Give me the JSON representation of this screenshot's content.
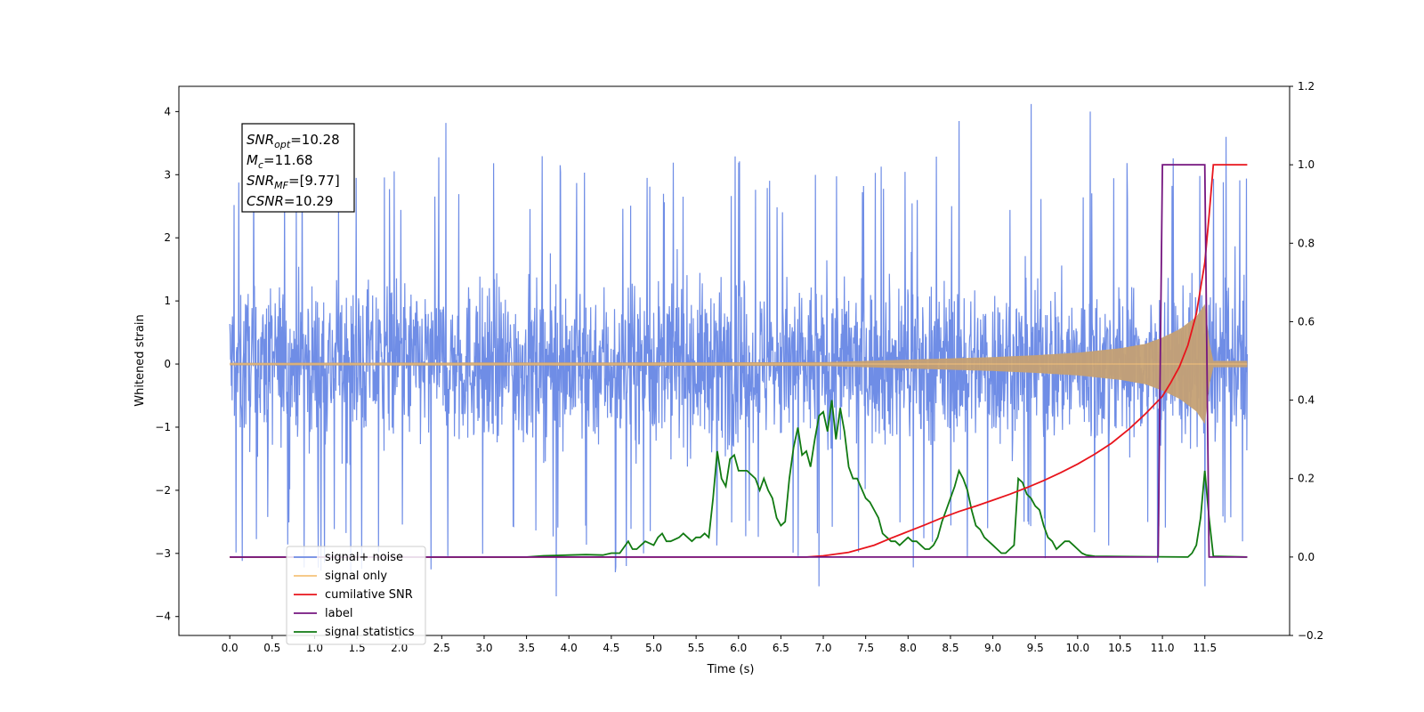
{
  "chart_data": {
    "type": "line",
    "xlabel": "Time (s)",
    "ylabel_left": "Whitened strain",
    "ylabel_right": "",
    "xlim": [
      -0.6,
      12.5
    ],
    "ylim_left": [
      -4.3,
      4.4
    ],
    "ylim_right": [
      -0.2,
      1.2
    ],
    "x_ticks": [
      0.0,
      0.5,
      1.0,
      1.5,
      2.0,
      2.5,
      3.0,
      3.5,
      4.0,
      4.5,
      5.0,
      5.5,
      6.0,
      6.5,
      7.0,
      7.5,
      8.0,
      8.5,
      9.0,
      9.5,
      10.0,
      10.5,
      11.0,
      11.5
    ],
    "x_tick_labels": [
      "0.0",
      "0.5",
      "1.0",
      "1.5",
      "2.0",
      "2.5",
      "3.0",
      "3.5",
      "4.0",
      "4.5",
      "5.0",
      "5.5",
      "6.0",
      "6.5",
      "7.0",
      "7.5",
      "8.0",
      "8.5",
      "9.0",
      "9.5",
      "10.0",
      "10.5",
      "11.0",
      "11.5"
    ],
    "y_left_ticks": [
      4,
      3,
      2,
      1,
      0,
      -1,
      -2,
      -3,
      -4
    ],
    "y_left_tick_labels": [
      "4",
      "3",
      "2",
      "1",
      "0",
      "−1",
      "−2",
      "−3",
      "−4"
    ],
    "y_right_ticks": [
      1.2,
      1.0,
      0.8,
      0.6,
      0.4,
      0.2,
      0.0,
      -0.2
    ],
    "y_right_tick_labels": [
      "1.2",
      "1.0",
      "0.8",
      "0.6",
      "0.4",
      "0.2",
      "0.0",
      "−0.2"
    ],
    "grid": false,
    "legend_placement": "lower-left",
    "legend": [
      {
        "label": "signal+ noise",
        "color": "#6f8de6"
      },
      {
        "label": "signal only",
        "color": "#f5c27a"
      },
      {
        "label": "cumilative SNR",
        "color": "#e8141c"
      },
      {
        "label": "label",
        "color": "#75157f"
      },
      {
        "label": "signal statistics",
        "color": "#117a12"
      }
    ],
    "annotation_box": [
      {
        "var": "SNR",
        "sub": "opt",
        "value": "=10.28"
      },
      {
        "var": "M",
        "sub": "c",
        "value": "=11.68"
      },
      {
        "var": "SNR",
        "sub": "MF",
        "value": "=[9.77]"
      },
      {
        "var": "CSNR",
        "sub": "",
        "value": "=10.29"
      }
    ],
    "series": [
      {
        "name": "signal+ noise",
        "axis": "left",
        "color": "#6f8de6",
        "x_range": [
          0.0,
          12.0
        ],
        "amplitude_envelope": 2.4,
        "extreme_peaks": [
          {
            "x": 2.55,
            "y": 3.82
          },
          {
            "x": 9.45,
            "y": 4.12
          },
          {
            "x": 10.15,
            "y": 4.0
          },
          {
            "x": 8.6,
            "y": 3.85
          },
          {
            "x": 11.75,
            "y": 3.6
          },
          {
            "x": 3.85,
            "y": -3.68
          },
          {
            "x": 6.95,
            "y": -3.52
          },
          {
            "x": 11.5,
            "y": -3.52
          },
          {
            "x": 0.15,
            "y": -3.12
          }
        ]
      },
      {
        "name": "signal only",
        "axis": "left",
        "color": "#f5c27a",
        "envelope_x": [
          0,
          7.0,
          7.5,
          8.0,
          8.5,
          9.0,
          9.5,
          10.0,
          10.5,
          10.8,
          11.0,
          11.2,
          11.4,
          11.5,
          11.56,
          11.6,
          12.0
        ],
        "envelope_y": [
          0.02,
          0.03,
          0.05,
          0.07,
          0.09,
          0.11,
          0.14,
          0.18,
          0.25,
          0.32,
          0.42,
          0.55,
          0.75,
          0.95,
          0.3,
          0.05,
          0.05
        ]
      },
      {
        "name": "cumilative SNR",
        "axis": "right",
        "color": "#e8141c",
        "x": [
          0,
          6.8,
          7.0,
          7.3,
          7.6,
          7.8,
          8.0,
          8.2,
          8.4,
          8.6,
          8.8,
          9.0,
          9.2,
          9.4,
          9.6,
          9.8,
          10.0,
          10.2,
          10.4,
          10.6,
          10.8,
          11.0,
          11.1,
          11.2,
          11.3,
          11.4,
          11.5,
          11.55,
          11.6,
          12.0
        ],
        "y": [
          0.0,
          0.0,
          0.003,
          0.012,
          0.03,
          0.048,
          0.065,
          0.082,
          0.1,
          0.116,
          0.13,
          0.145,
          0.16,
          0.177,
          0.195,
          0.215,
          0.237,
          0.262,
          0.29,
          0.325,
          0.365,
          0.41,
          0.445,
          0.485,
          0.54,
          0.62,
          0.75,
          0.87,
          1.0,
          1.0
        ]
      },
      {
        "name": "label",
        "axis": "right",
        "color": "#75157f",
        "x": [
          0,
          10.95,
          11.0,
          11.5,
          11.55,
          12.0
        ],
        "y": [
          0,
          0,
          1,
          1,
          0,
          0
        ]
      },
      {
        "name": "signal statistics",
        "axis": "right",
        "color": "#117a12",
        "x": [
          0,
          3.5,
          3.7,
          4.0,
          4.2,
          4.4,
          4.5,
          4.6,
          4.7,
          4.75,
          4.8,
          4.85,
          4.9,
          5.0,
          5.05,
          5.1,
          5.15,
          5.2,
          5.3,
          5.35,
          5.4,
          5.45,
          5.5,
          5.55,
          5.6,
          5.65,
          5.7,
          5.75,
          5.8,
          5.85,
          5.9,
          5.95,
          6.0,
          6.1,
          6.2,
          6.25,
          6.3,
          6.35,
          6.4,
          6.45,
          6.5,
          6.55,
          6.6,
          6.65,
          6.7,
          6.75,
          6.8,
          6.85,
          6.9,
          6.95,
          7.0,
          7.05,
          7.1,
          7.15,
          7.2,
          7.25,
          7.3,
          7.35,
          7.4,
          7.5,
          7.55,
          7.6,
          7.65,
          7.7,
          7.75,
          7.8,
          7.85,
          7.9,
          7.95,
          8.0,
          8.05,
          8.1,
          8.15,
          8.2,
          8.25,
          8.3,
          8.35,
          8.4,
          8.45,
          8.5,
          8.55,
          8.6,
          8.65,
          8.7,
          8.75,
          8.8,
          8.85,
          8.9,
          8.95,
          9.0,
          9.05,
          9.1,
          9.15,
          9.2,
          9.25,
          9.3,
          9.35,
          9.4,
          9.45,
          9.5,
          9.55,
          9.6,
          9.65,
          9.7,
          9.75,
          9.8,
          9.85,
          9.9,
          9.95,
          10.0,
          10.05,
          10.1,
          10.2,
          11.3,
          11.35,
          11.4,
          11.45,
          11.5,
          11.55,
          11.6,
          12.0
        ],
        "y": [
          0,
          0,
          0.003,
          0.005,
          0.006,
          0.005,
          0.01,
          0.01,
          0.04,
          0.02,
          0.02,
          0.03,
          0.04,
          0.03,
          0.05,
          0.06,
          0.04,
          0.04,
          0.05,
          0.06,
          0.05,
          0.04,
          0.05,
          0.05,
          0.06,
          0.05,
          0.15,
          0.27,
          0.2,
          0.18,
          0.25,
          0.26,
          0.22,
          0.22,
          0.2,
          0.17,
          0.2,
          0.17,
          0.15,
          0.1,
          0.08,
          0.09,
          0.2,
          0.28,
          0.33,
          0.26,
          0.27,
          0.23,
          0.3,
          0.36,
          0.37,
          0.32,
          0.4,
          0.3,
          0.38,
          0.32,
          0.23,
          0.2,
          0.2,
          0.15,
          0.14,
          0.12,
          0.1,
          0.06,
          0.05,
          0.04,
          0.04,
          0.03,
          0.04,
          0.05,
          0.04,
          0.04,
          0.03,
          0.02,
          0.02,
          0.03,
          0.05,
          0.09,
          0.12,
          0.15,
          0.18,
          0.22,
          0.2,
          0.17,
          0.12,
          0.08,
          0.07,
          0.05,
          0.04,
          0.03,
          0.02,
          0.01,
          0.01,
          0.02,
          0.03,
          0.2,
          0.19,
          0.16,
          0.15,
          0.13,
          0.12,
          0.08,
          0.05,
          0.04,
          0.02,
          0.03,
          0.04,
          0.04,
          0.03,
          0.02,
          0.01,
          0.005,
          0.002,
          0,
          0.01,
          0.03,
          0.1,
          0.22,
          0.1,
          0.002,
          0
        ]
      }
    ]
  }
}
